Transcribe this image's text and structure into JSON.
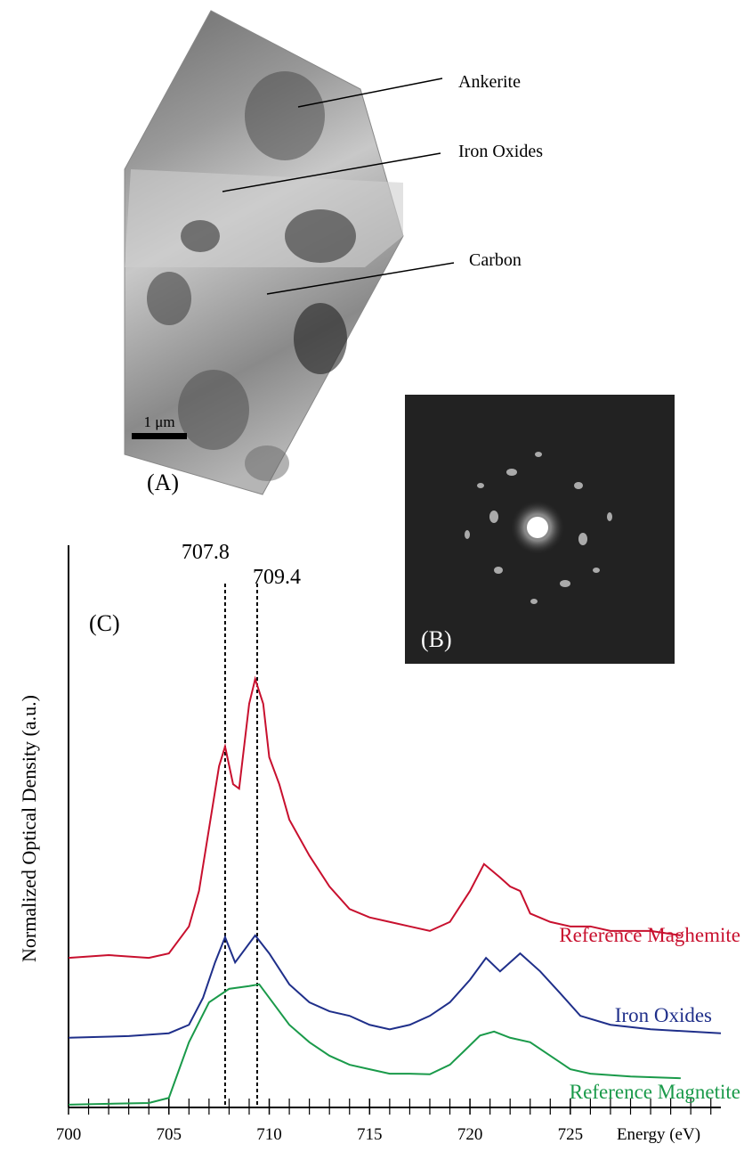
{
  "panels": {
    "a_label": "(A)",
    "scale_bar": "1 μm",
    "annotations": [
      "Ankerite",
      "Iron Oxides",
      "Carbon"
    ],
    "b_label": "(B)"
  },
  "chart_data": {
    "type": "line",
    "panel_label": "(C)",
    "y_label": "Normalized Optical Density (a.u.)",
    "x_label": "Energy (eV)",
    "xlim": [
      700,
      732.5
    ],
    "ylim": [
      0,
      100
    ],
    "xticks": [
      700,
      705,
      710,
      715,
      720,
      725
    ],
    "xticks_minor": [
      701,
      702,
      703,
      704,
      706,
      707,
      708,
      709,
      711,
      712,
      713,
      714,
      716,
      717,
      718,
      719,
      721,
      722,
      723,
      724,
      726,
      727,
      728,
      729,
      730,
      731,
      732
    ],
    "vlines": [
      707.8,
      709.4
    ],
    "series": [
      {
        "name": "Reference Maghemite",
        "color": "#c8102e",
        "x": [
          700,
          702,
          704,
          705,
          706,
          706.5,
          707,
          707.5,
          707.8,
          708.2,
          708.5,
          709,
          709.3,
          709.7,
          710,
          710.5,
          711,
          712,
          713,
          714,
          715,
          716,
          717,
          718,
          719,
          720,
          720.7,
          721.5,
          722,
          722.5,
          723,
          724,
          725,
          726,
          727,
          728,
          729,
          730.5
        ],
        "values": [
          26.6,
          27.1,
          26.6,
          27.4,
          32.2,
          38.5,
          49.6,
          60.7,
          64.2,
          57.5,
          56.7,
          71.8,
          76.2,
          71.8,
          62.3,
          57.5,
          51.2,
          44.8,
          39.3,
          35.3,
          33.8,
          33.0,
          32.2,
          31.4,
          33.0,
          38.5,
          43.3,
          40.9,
          39.3,
          38.5,
          34.5,
          33.0,
          32.2,
          32.2,
          31.4,
          31.4,
          31.4,
          30.6
        ]
      },
      {
        "name": "Iron Oxides",
        "color": "#1f2f8a",
        "x": [
          700,
          703,
          705,
          706,
          706.7,
          707.3,
          707.8,
          708.3,
          709.3,
          710,
          711,
          712,
          713,
          714,
          715,
          716,
          717,
          718,
          719,
          720,
          720.8,
          721.5,
          722.5,
          723.5,
          724.5,
          725.5,
          727,
          729,
          732.5
        ],
        "values": [
          12.4,
          12.7,
          13.2,
          14.7,
          19.5,
          25.8,
          30.3,
          25.8,
          30.6,
          27.4,
          21.9,
          18.7,
          17.1,
          16.3,
          14.7,
          13.9,
          14.7,
          16.3,
          18.7,
          22.7,
          26.6,
          24.2,
          27.4,
          24.2,
          20.3,
          16.3,
          14.7,
          13.9,
          13.2
        ]
      },
      {
        "name": "Reference Magnetite",
        "color": "#1a9a4a",
        "x": [
          700,
          704,
          705,
          706,
          707,
          708,
          709,
          709.5,
          710,
          711,
          712,
          713,
          714,
          715,
          716,
          717,
          718,
          719,
          719.7,
          720.5,
          721.2,
          722,
          723,
          724,
          725,
          726,
          728,
          730.5
        ],
        "values": [
          0.5,
          0.8,
          1.7,
          11.6,
          18.7,
          21.1,
          21.6,
          21.9,
          19.5,
          14.7,
          11.6,
          9.2,
          7.6,
          6.8,
          6.0,
          6.0,
          5.9,
          7.6,
          10.0,
          12.8,
          13.5,
          12.4,
          11.6,
          9.2,
          6.8,
          6.0,
          5.5,
          5.2
        ]
      }
    ]
  }
}
